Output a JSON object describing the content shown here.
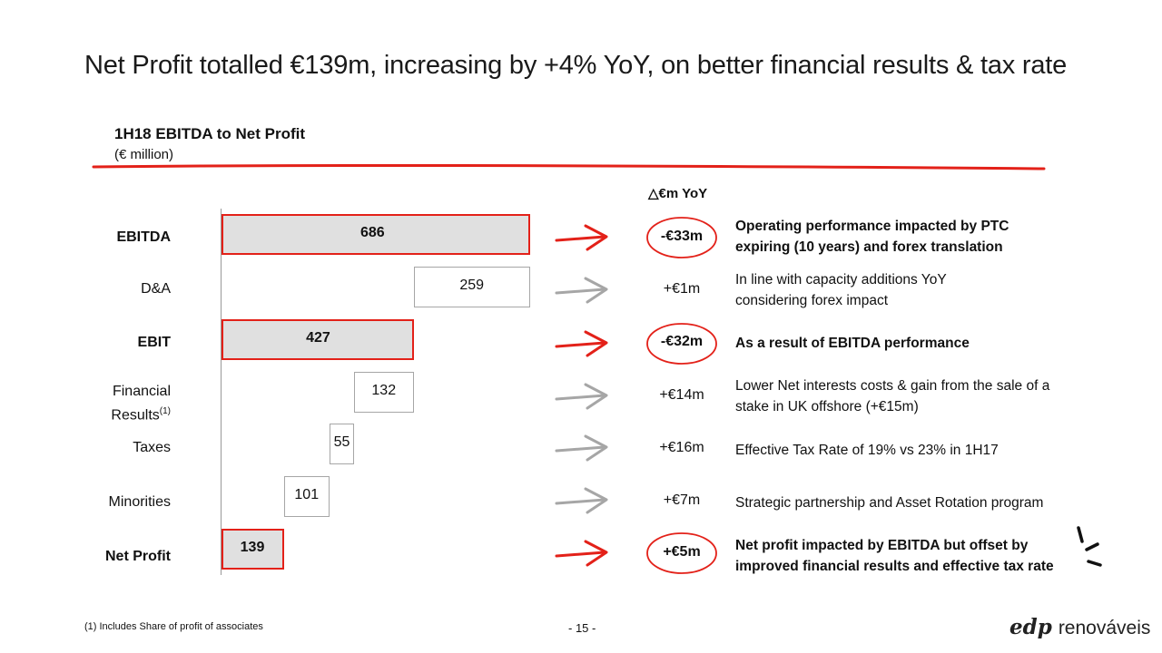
{
  "slide": {
    "title": "Net Profit totalled €139m, increasing by +4% YoY, on better financial results & tax rate",
    "footnote": "(1) Includes Share of profit of associates",
    "page": "- 15 -",
    "brand_mark": "edp",
    "brand_word": "renováveis"
  },
  "colors": {
    "highlight": "#e32119",
    "neutral_arrow": "#a6a6a6",
    "bar_fill": "#e0e0e0"
  },
  "chart_data": {
    "type": "bar",
    "subtype": "waterfall",
    "title": "1H18 EBITDA to Net Profit",
    "unit": "(€ million)",
    "categories": [
      "EBITDA",
      "D&A",
      "EBIT",
      "Financial Results",
      "Taxes",
      "Minorities",
      "Net Profit"
    ],
    "values": [
      686,
      259,
      427,
      132,
      55,
      101,
      139
    ],
    "steps": [
      "total",
      "decrease",
      "total",
      "decrease",
      "decrease",
      "decrease",
      "total"
    ],
    "highlighted": [
      true,
      false,
      true,
      false,
      false,
      false,
      true
    ],
    "grid": false,
    "legend": "none"
  },
  "row_labels": [
    {
      "text": "EBITDA",
      "sup": ""
    },
    {
      "text": "D&A",
      "sup": ""
    },
    {
      "text": "EBIT",
      "sup": ""
    },
    {
      "text": "Financial Results",
      "sup": "(1)"
    },
    {
      "text": "Taxes",
      "sup": ""
    },
    {
      "text": "Minorities",
      "sup": ""
    },
    {
      "text": "Net Profit",
      "sup": ""
    }
  ],
  "yoy": {
    "header": "€m YoY",
    "deltas": [
      "-€33m",
      "+€1m",
      "-€32m",
      "+€14m",
      "+€16m",
      "+€7m",
      "+€5m"
    ],
    "circled": [
      true,
      false,
      true,
      false,
      false,
      false,
      true
    ]
  },
  "comments": [
    {
      "line1": "Operating performance impacted by PTC",
      "line2": "expiring (10 years) and forex translation"
    },
    {
      "line1": "In line with capacity additions YoY",
      "line2": "considering forex impact"
    },
    {
      "line1": "As a result of EBITDA performance",
      "line2": ""
    },
    {
      "line1": "Lower Net interests costs & gain from the sale of a",
      "line2": "stake in UK offshore (+€15m)"
    },
    {
      "line1": "Effective Tax Rate of 19% vs 23% in 1H17",
      "line2": ""
    },
    {
      "line1": "Strategic partnership and Asset Rotation program",
      "line2": ""
    },
    {
      "line1": "Net profit impacted by EBITDA but offset by",
      "line2": "improved financial results and effective tax rate"
    }
  ]
}
